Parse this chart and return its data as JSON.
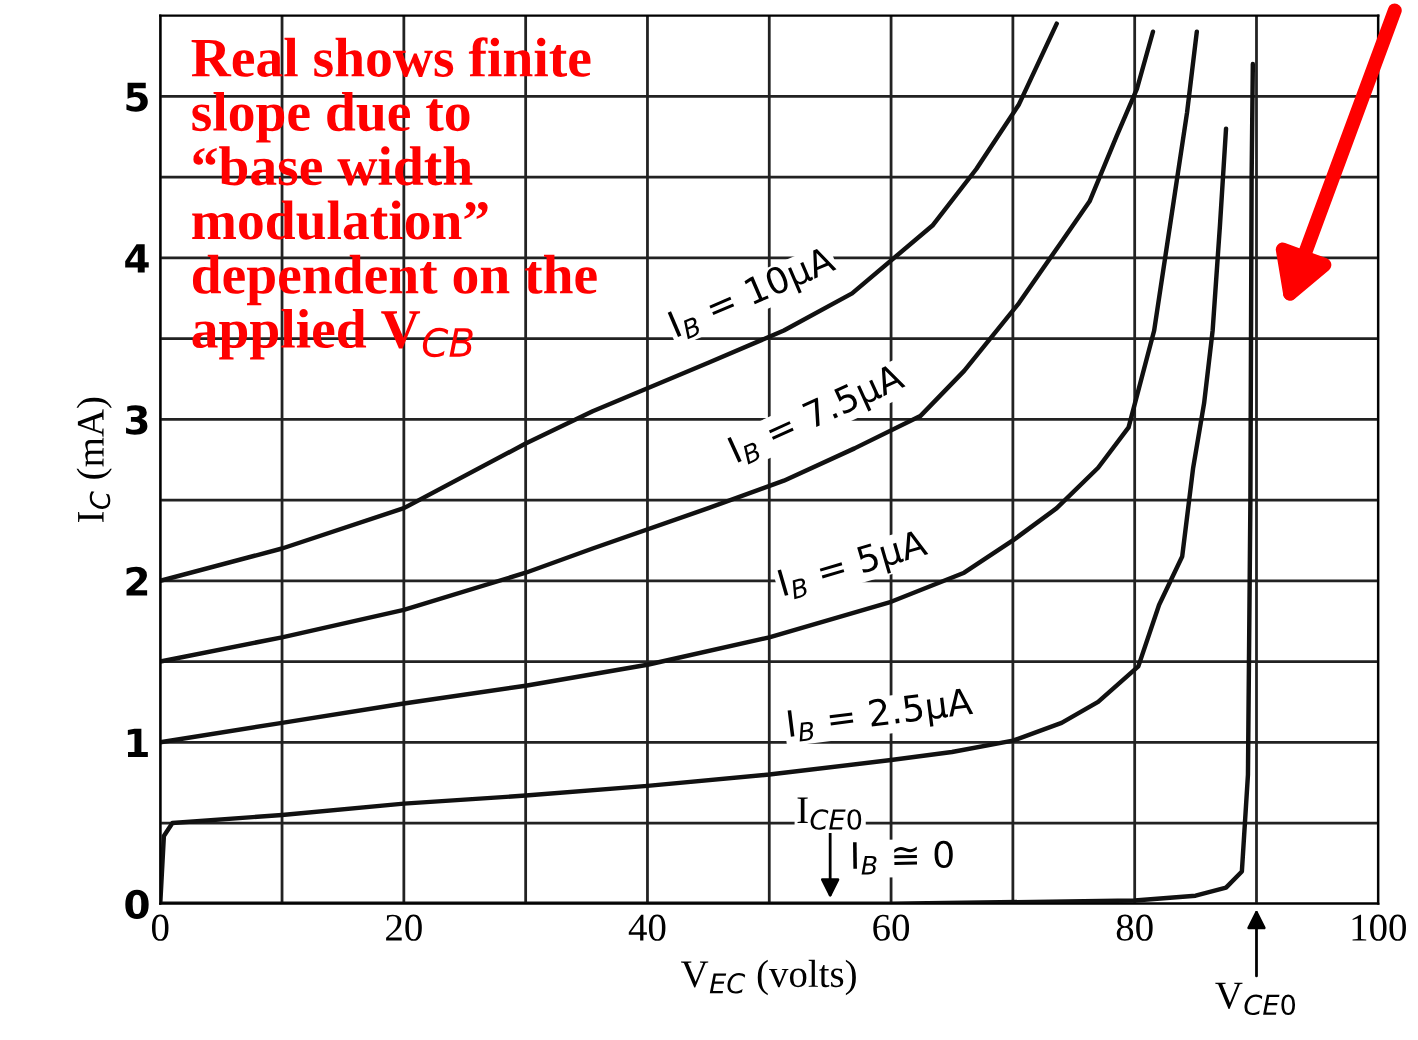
{
  "chart_data": {
    "type": "line",
    "xlabel": "V$_{EC}$ (volts)",
    "ylabel": "I$_{C}$ (mA)",
    "xlim": [
      0,
      100
    ],
    "ylim": [
      0,
      5.5
    ],
    "xticks": [
      0,
      {
        "value": 10,
        "label": null
      },
      20,
      {
        "value": 30,
        "label": null
      },
      40,
      {
        "value": 50,
        "label": null
      },
      60,
      {
        "value": 70,
        "label": null
      },
      80,
      {
        "value": 90,
        "label": null
      },
      100
    ],
    "yticks": [
      0,
      {
        "value": 0.5,
        "label": null
      },
      1,
      {
        "value": 1.5,
        "label": null
      },
      2,
      {
        "value": 2.5,
        "label": null
      },
      3,
      {
        "value": 3.5,
        "label": null
      },
      4,
      {
        "value": 4.5,
        "label": null
      },
      5
    ],
    "grid": true,
    "legend": false,
    "marker": "none",
    "line_style": "solid",
    "series": [
      {
        "name": "I$_{B}$ = 10μA",
        "color": "#111111",
        "x": [
          0,
          10,
          20,
          30,
          35.5,
          45,
          51.2,
          56.8,
          63.4,
          67,
          70.5,
          73.6
        ],
        "values": [
          2.0,
          2.2,
          2.45,
          2.85,
          3.05,
          3.35,
          3.55,
          3.78,
          4.2,
          4.55,
          4.95,
          5.45
        ]
      },
      {
        "name": "I$_{B}$ = 7.5μA",
        "color": "#111111",
        "x": [
          0,
          10,
          20,
          30,
          35.5,
          45,
          51.2,
          57,
          62.4,
          66,
          70.5,
          74,
          76.3,
          78.5,
          80.2,
          81.5
        ],
        "values": [
          1.5,
          1.65,
          1.82,
          2.05,
          2.2,
          2.45,
          2.62,
          2.82,
          3.02,
          3.3,
          3.72,
          4.1,
          4.35,
          4.75,
          5.05,
          5.4
        ]
      },
      {
        "name": "I$_{B}$ = 5μA",
        "color": "#111111",
        "x": [
          0,
          10,
          20,
          30,
          40,
          50,
          60,
          66,
          70,
          73.6,
          77,
          79.5,
          81.6,
          83.2,
          84.3,
          85.1
        ],
        "values": [
          1.0,
          1.12,
          1.24,
          1.35,
          1.48,
          1.65,
          1.87,
          2.05,
          2.25,
          2.45,
          2.7,
          2.95,
          3.55,
          4.35,
          4.9,
          5.4
        ]
      },
      {
        "name": "I$_{B}$ = 2.5μA",
        "color": "#111111",
        "x": [
          0,
          0.3,
          1,
          10,
          20,
          30,
          40,
          50,
          60,
          65,
          70,
          74,
          77,
          80.3,
          82,
          83.9,
          84.8,
          85.7,
          86.4,
          87,
          87.5
        ],
        "values": [
          0,
          0.42,
          0.5,
          0.55,
          0.62,
          0.67,
          0.73,
          0.8,
          0.89,
          0.94,
          1.01,
          1.12,
          1.25,
          1.47,
          1.85,
          2.15,
          2.7,
          3.1,
          3.55,
          4.2,
          4.8
        ]
      },
      {
        "name": "I$_{B}$ ≅ 0",
        "color": "#111111",
        "x": [
          0,
          20,
          40,
          60,
          80,
          85,
          87.5,
          88.8,
          89.3,
          89.5,
          89.6,
          89.7
        ],
        "values": [
          0,
          0,
          0,
          0,
          0.02,
          0.05,
          0.1,
          0.2,
          0.8,
          2.5,
          4.5,
          5.2
        ]
      }
    ],
    "annotations": [
      {
        "text": "I$_{CE0}$",
        "x": 55,
        "y": 0
      },
      "V$_{CE0}$",
      "Real shows finite\nslope due to\n“base width\nmodulation”\ndependent on the\napplied V$_{CB}$"
    ]
  }
}
